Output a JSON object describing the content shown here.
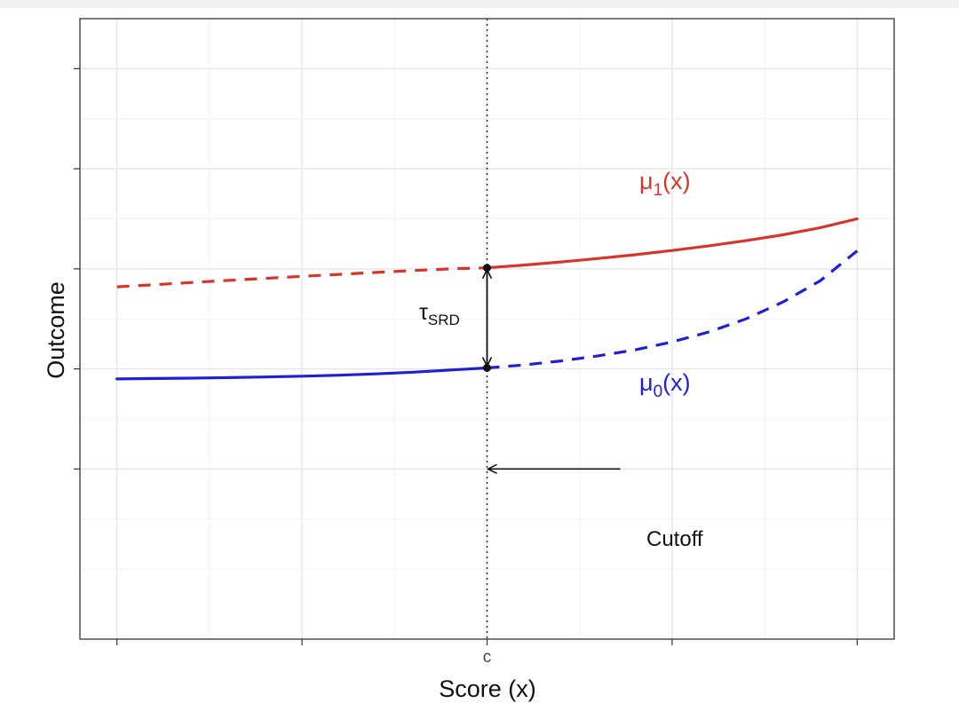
{
  "chart_data": {
    "type": "line",
    "title": "",
    "xlabel": "Score (x)",
    "ylabel": "Outcome",
    "x_ticks": [
      0,
      0.25,
      0.5,
      0.75,
      1.0
    ],
    "x_tick_labels": [
      "",
      "",
      "c",
      "",
      ""
    ],
    "y_ticks": [
      1,
      2,
      3,
      4,
      5
    ],
    "xlim": [
      -0.05,
      1.05
    ],
    "ylim": [
      -0.7,
      5.5
    ],
    "cutoff": 0.5,
    "grid": true,
    "series": [
      {
        "id": "mu1",
        "name": "μ₁(x)",
        "label_main": "μ",
        "label_sub": "1",
        "label_rest": "(x)",
        "color": "#d7352c",
        "points": [
          {
            "x": 0.0,
            "y": 2.82
          },
          {
            "x": 0.05,
            "y": 2.841
          },
          {
            "x": 0.1,
            "y": 2.863
          },
          {
            "x": 0.15,
            "y": 2.884
          },
          {
            "x": 0.2,
            "y": 2.905
          },
          {
            "x": 0.25,
            "y": 2.925
          },
          {
            "x": 0.3,
            "y": 2.945
          },
          {
            "x": 0.35,
            "y": 2.964
          },
          {
            "x": 0.4,
            "y": 2.983
          },
          {
            "x": 0.45,
            "y": 3.0
          },
          {
            "x": 0.5,
            "y": 3.01
          },
          {
            "x": 0.55,
            "y": 3.038
          },
          {
            "x": 0.6,
            "y": 3.069
          },
          {
            "x": 0.65,
            "y": 3.103
          },
          {
            "x": 0.7,
            "y": 3.141
          },
          {
            "x": 0.75,
            "y": 3.183
          },
          {
            "x": 0.8,
            "y": 3.23
          },
          {
            "x": 0.85,
            "y": 3.282
          },
          {
            "x": 0.9,
            "y": 3.34
          },
          {
            "x": 0.95,
            "y": 3.41
          },
          {
            "x": 1.0,
            "y": 3.5
          }
        ],
        "dashed_range": [
          0.0,
          0.5
        ],
        "solid_range": [
          0.5,
          1.0
        ]
      },
      {
        "id": "mu0",
        "name": "μ₀(x)",
        "label_main": "μ",
        "label_sub": "0",
        "label_rest": "(x)",
        "color": "#1f1fd6",
        "points": [
          {
            "x": 0.0,
            "y": 1.9
          },
          {
            "x": 0.05,
            "y": 1.904
          },
          {
            "x": 0.1,
            "y": 1.908
          },
          {
            "x": 0.15,
            "y": 1.913
          },
          {
            "x": 0.2,
            "y": 1.919
          },
          {
            "x": 0.25,
            "y": 1.927
          },
          {
            "x": 0.3,
            "y": 1.937
          },
          {
            "x": 0.35,
            "y": 1.95
          },
          {
            "x": 0.4,
            "y": 1.967
          },
          {
            "x": 0.45,
            "y": 1.988
          },
          {
            "x": 0.5,
            "y": 2.01
          },
          {
            "x": 0.55,
            "y": 2.04
          },
          {
            "x": 0.6,
            "y": 2.08
          },
          {
            "x": 0.65,
            "y": 2.13
          },
          {
            "x": 0.7,
            "y": 2.19
          },
          {
            "x": 0.75,
            "y": 2.27
          },
          {
            "x": 0.8,
            "y": 2.37
          },
          {
            "x": 0.85,
            "y": 2.5
          },
          {
            "x": 0.9,
            "y": 2.67
          },
          {
            "x": 0.95,
            "y": 2.88
          },
          {
            "x": 1.0,
            "y": 3.18
          }
        ],
        "solid_range": [
          0.0,
          0.5
        ],
        "dashed_range": [
          0.5,
          1.0
        ]
      }
    ],
    "annotations": {
      "tau_main": "τ",
      "tau_sub": "SRD",
      "cutoff_label": "Cutoff",
      "tau_from": {
        "x": 0.5,
        "y": 2.01
      },
      "tau_to": {
        "x": 0.5,
        "y": 3.01
      },
      "cutoff_arrow_y": 1.0,
      "cutoff_arrow_from_x": 0.68
    }
  }
}
